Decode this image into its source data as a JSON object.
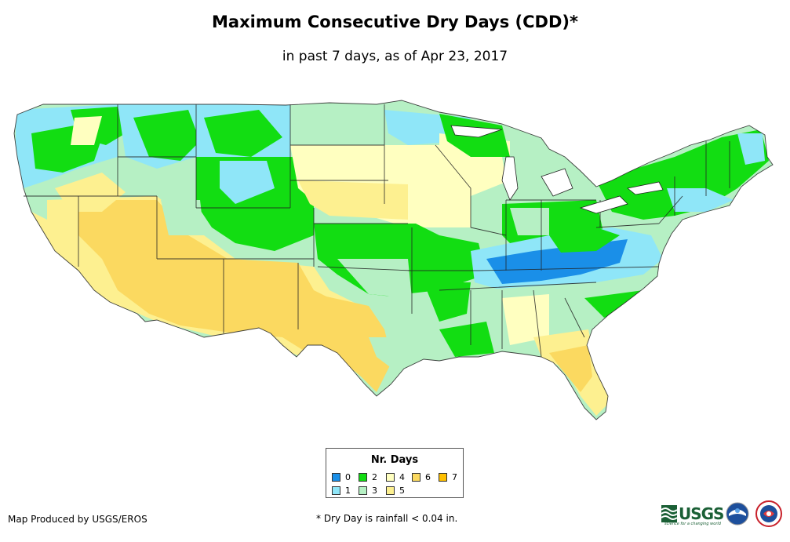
{
  "title": "Maximum Consecutive Dry Days (CDD)*",
  "subtitle": "in past 7 days, as of Apr 23, 2017",
  "legend": {
    "title": "Nr. Days",
    "items": [
      {
        "label": "0",
        "color": "#1a8fe8"
      },
      {
        "label": "1",
        "color": "#8fe6f8"
      },
      {
        "label": "2",
        "color": "#12dd12"
      },
      {
        "label": "3",
        "color": "#b6f0c4"
      },
      {
        "label": "4",
        "color": "#ffffc0"
      },
      {
        "label": "5",
        "color": "#fdf090"
      },
      {
        "label": "6",
        "color": "#fbd960"
      },
      {
        "label": "7",
        "color": "#ffc000"
      }
    ]
  },
  "footer": {
    "credit": "Map Produced by USGS/EROS",
    "note": "* Dry Day is rainfall < 0.04 in."
  },
  "logos": {
    "usgs": "USGS",
    "usgs_tagline": "science for a changing world"
  },
  "icons": {
    "noaa": "noaa-logo-icon",
    "nws": "nws-logo-icon",
    "usgs": "usgs-logo-icon"
  }
}
